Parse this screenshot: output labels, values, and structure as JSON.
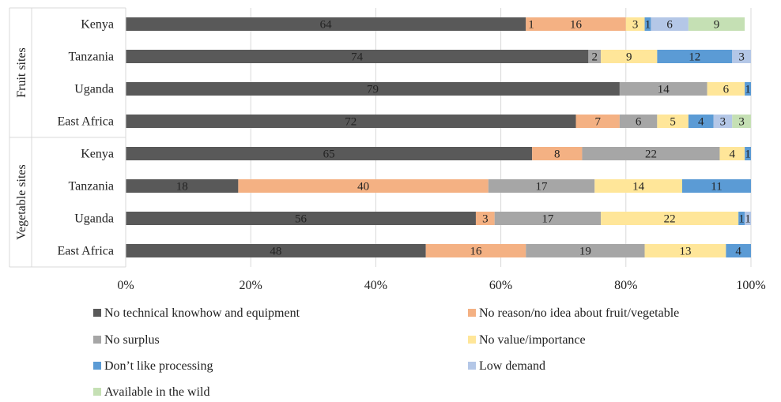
{
  "chart_data": {
    "type": "bar",
    "orientation": "horizontal",
    "stacked": true,
    "percent_scale": true,
    "groups": [
      {
        "label": "Fruit sites",
        "categories": [
          "Kenya",
          "Tanzania",
          "Uganda",
          "East Africa"
        ]
      },
      {
        "label": "Vegetable sites",
        "categories": [
          "Kenya",
          "Tanzania",
          "Uganda",
          "East Africa"
        ]
      }
    ],
    "categories": [
      "Kenya",
      "Tanzania",
      "Uganda",
      "East Africa",
      "Kenya",
      "Tanzania",
      "Uganda",
      "East Africa"
    ],
    "series": [
      {
        "name": "No technical knowhow and equipment",
        "color": "#595959",
        "values": [
          64,
          74,
          79,
          72,
          65,
          18,
          56,
          48
        ]
      },
      {
        "name": "No reason/no idea about fruit/vegetable",
        "color": "#F4B183",
        "values": [
          16,
          0,
          0,
          7,
          8,
          40,
          3,
          16
        ]
      },
      {
        "name": "No surplus",
        "color": "#A6A6A6",
        "values": [
          0,
          2,
          14,
          6,
          22,
          17,
          17,
          19
        ]
      },
      {
        "name": "No value/importance",
        "color": "#FFE699",
        "values": [
          3,
          9,
          6,
          5,
          4,
          14,
          22,
          13
        ]
      },
      {
        "name": "Don’t like processing",
        "color": "#5B9BD5",
        "values": [
          1,
          12,
          1,
          4,
          1,
          11,
          1,
          4
        ]
      },
      {
        "name": "Low demand",
        "color": "#B4C7E7",
        "values": [
          6,
          3,
          0,
          3,
          0,
          0,
          1,
          0
        ]
      },
      {
        "name": "Available in the wild",
        "color": "#C5E0B4",
        "values": [
          9,
          0,
          0,
          3,
          0,
          0,
          0,
          0
        ]
      }
    ],
    "extra_labels": [
      {
        "row": 0,
        "text": "1"
      }
    ],
    "xlim": [
      0,
      100
    ],
    "x_ticks": [
      "0%",
      "20%",
      "40%",
      "60%",
      "80%",
      "100%"
    ],
    "grid": true,
    "legend_position": "bottom"
  }
}
